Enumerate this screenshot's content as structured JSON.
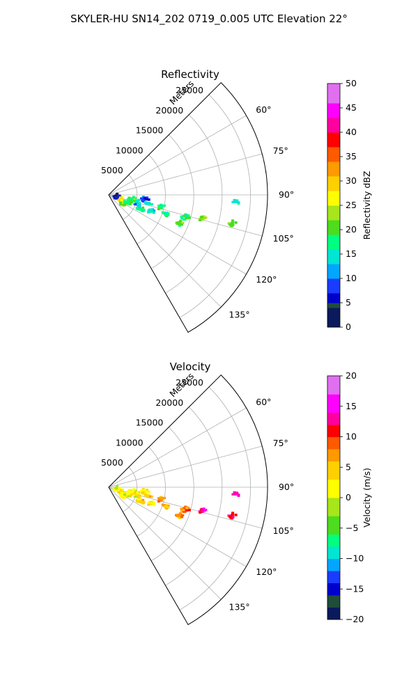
{
  "figure": {
    "suptitle": "SKYLER-HU  SN14_202  0719_0.005 UTC Elevation 22°"
  },
  "chart_data": [
    {
      "type": "polar-sector",
      "title": "Reflectivity",
      "radial_label": "Meters",
      "theta_range_deg": [
        45,
        150
      ],
      "r_max": 28000,
      "radial_ticks": [
        5000,
        10000,
        15000,
        20000,
        25000
      ],
      "angle_ticks_deg": [
        60,
        75,
        90,
        105,
        120,
        135
      ],
      "angle_tick_labels": [
        "60°",
        "75°",
        "90°",
        "105°",
        "120°",
        "135°"
      ],
      "grid": true,
      "colorbar": {
        "label": "Reflectivity dBZ",
        "range": [
          0,
          50
        ],
        "ticks": [
          0,
          5,
          10,
          15,
          20,
          25,
          30,
          35,
          40,
          45,
          50
        ],
        "tick_labels": [
          "0",
          "5",
          "10",
          "15",
          "20",
          "25",
          "30",
          "35",
          "40",
          "45",
          "50"
        ]
      },
      "colormap": [
        [
          0,
          "#0a1a5c"
        ],
        [
          4,
          "#1f4d3a"
        ],
        [
          5,
          "#0000cc"
        ],
        [
          7,
          "#1a3cff"
        ],
        [
          10,
          "#00a6ff"
        ],
        [
          13,
          "#00e6d2"
        ],
        [
          16,
          "#00ff80"
        ],
        [
          19,
          "#4ddc1e"
        ],
        [
          22,
          "#a6e61a"
        ],
        [
          25,
          "#ffff00"
        ],
        [
          28,
          "#ffd000"
        ],
        [
          31,
          "#ff9a00"
        ],
        [
          34,
          "#ff5a00"
        ],
        [
          37,
          "#ff0000"
        ],
        [
          40,
          "#ff00a0"
        ],
        [
          43,
          "#ff00ff"
        ],
        [
          46,
          "#e070f0"
        ],
        [
          50,
          "#ffe6ff"
        ]
      ],
      "echoes": [
        {
          "r": 1400,
          "az": 98,
          "value": 6
        },
        {
          "r": 2300,
          "az": 113,
          "value": 26
        },
        {
          "r": 3100,
          "az": 118,
          "value": 22
        },
        {
          "r": 3700,
          "az": 110,
          "value": 18
        },
        {
          "r": 4200,
          "az": 101,
          "value": 20
        },
        {
          "r": 5200,
          "az": 105,
          "value": 16
        },
        {
          "r": 5700,
          "az": 109,
          "value": 12
        },
        {
          "r": 6200,
          "az": 114,
          "value": 17
        },
        {
          "r": 6500,
          "az": 97,
          "value": 8
        },
        {
          "r": 7100,
          "az": 102,
          "value": 14
        },
        {
          "r": 8000,
          "az": 110,
          "value": 15
        },
        {
          "r": 9500,
          "az": 103,
          "value": 18
        },
        {
          "r": 10600,
          "az": 109,
          "value": 17
        },
        {
          "r": 13300,
          "az": 112,
          "value": 21
        },
        {
          "r": 14100,
          "az": 106,
          "value": 18
        },
        {
          "r": 17100,
          "az": 104,
          "value": 22
        },
        {
          "r": 22400,
          "az": 103,
          "value": 20
        },
        {
          "r": 22500,
          "az": 93,
          "value": 15
        }
      ]
    },
    {
      "type": "polar-sector",
      "title": "Velocity",
      "radial_label": "Meters",
      "theta_range_deg": [
        45,
        150
      ],
      "r_max": 28000,
      "radial_ticks": [
        5000,
        10000,
        15000,
        20000,
        25000
      ],
      "angle_ticks_deg": [
        60,
        75,
        90,
        105,
        120,
        135
      ],
      "angle_tick_labels": [
        "60°",
        "75°",
        "90°",
        "105°",
        "120°",
        "135°"
      ],
      "grid": true,
      "colorbar": {
        "label": "Velocity (m/s)",
        "range": [
          -20,
          20
        ],
        "ticks": [
          -20,
          -15,
          -10,
          -5,
          0,
          5,
          10,
          15,
          20
        ],
        "tick_labels": [
          "−20",
          "−15",
          "−10",
          "−5",
          "0",
          "5",
          "10",
          "15",
          "20"
        ]
      },
      "colormap": [
        [
          -20,
          "#0a1a5c"
        ],
        [
          -18,
          "#1f4d3a"
        ],
        [
          -16,
          "#0000cc"
        ],
        [
          -14,
          "#1a3cff"
        ],
        [
          -12,
          "#00a6ff"
        ],
        [
          -10,
          "#00e6d2"
        ],
        [
          -8,
          "#00ff80"
        ],
        [
          -6,
          "#4ddc1e"
        ],
        [
          -3,
          "#a6e61a"
        ],
        [
          0,
          "#ffff00"
        ],
        [
          3,
          "#ffd000"
        ],
        [
          6,
          "#ff9a00"
        ],
        [
          8,
          "#ff5a00"
        ],
        [
          10,
          "#ff0000"
        ],
        [
          12,
          "#ff00a0"
        ],
        [
          14,
          "#ff00ff"
        ],
        [
          17,
          "#e070f0"
        ],
        [
          20,
          "#ffe6ff"
        ]
      ],
      "echoes": [
        {
          "r": 1400,
          "az": 98,
          "value": 1
        },
        {
          "r": 2300,
          "az": 113,
          "value": 1
        },
        {
          "r": 3100,
          "az": 118,
          "value": 2
        },
        {
          "r": 3700,
          "az": 110,
          "value": 1
        },
        {
          "r": 4200,
          "az": 101,
          "value": 2
        },
        {
          "r": 5200,
          "az": 105,
          "value": 3
        },
        {
          "r": 5700,
          "az": 109,
          "value": 2
        },
        {
          "r": 6200,
          "az": 114,
          "value": 4
        },
        {
          "r": 6500,
          "az": 97,
          "value": 3
        },
        {
          "r": 7100,
          "az": 102,
          "value": 4
        },
        {
          "r": 8000,
          "az": 110,
          "value": 3
        },
        {
          "r": 9500,
          "az": 103,
          "value": 7
        },
        {
          "r": 10600,
          "az": 109,
          "value": 5
        },
        {
          "r": 13300,
          "az": 112,
          "value": 8
        },
        {
          "r": 14100,
          "az": 106,
          "value": 8
        },
        {
          "r": 17100,
          "az": 104,
          "value": 13
        },
        {
          "r": 22400,
          "az": 103,
          "value": 11
        },
        {
          "r": 22500,
          "az": 93,
          "value": 14
        }
      ]
    }
  ]
}
